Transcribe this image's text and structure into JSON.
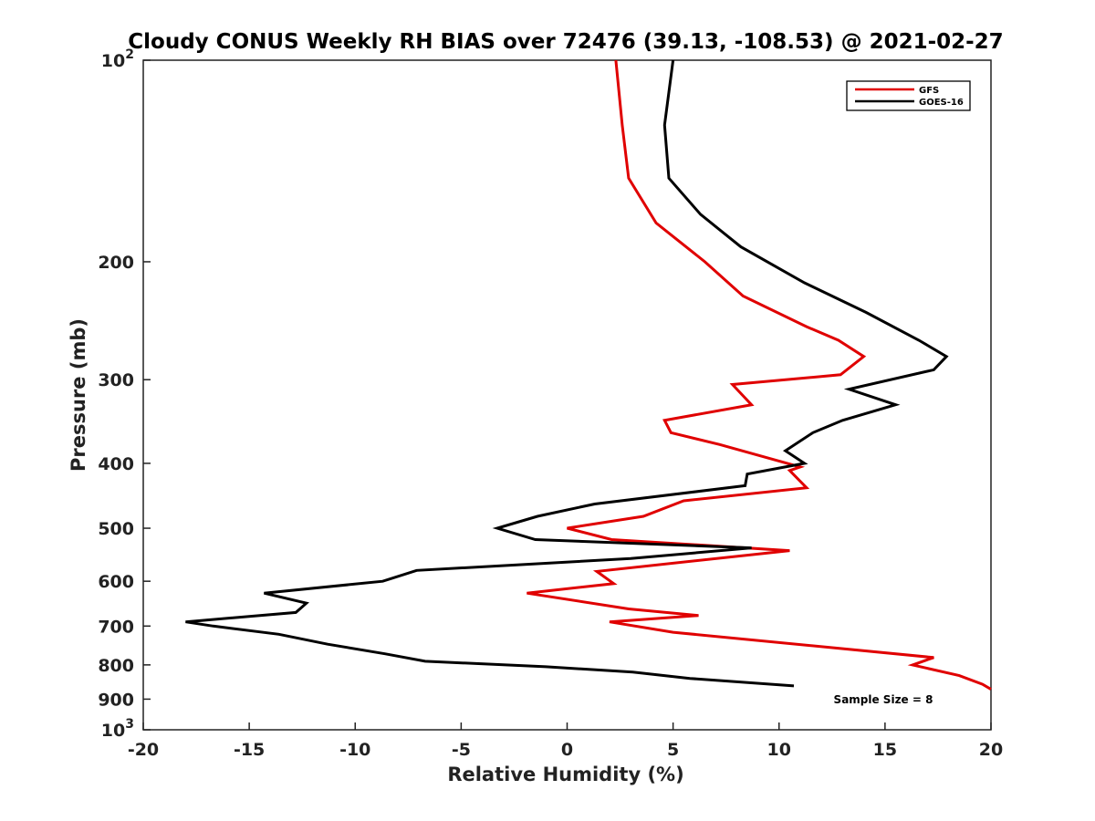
{
  "chart_data": {
    "type": "line",
    "title": "Cloudy CONUS Weekly RH BIAS over 72476 (39.13, -108.53) @ 2021-02-27",
    "xlabel": "Relative Humidity (%)",
    "ylabel": "Pressure (mb)",
    "xlim": [
      -20,
      20
    ],
    "ylim": [
      100,
      1000
    ],
    "y_scale": "log",
    "y_inverted": true,
    "grid": false,
    "legend_position": "top-right",
    "x_ticks": [
      -20,
      -15,
      -10,
      -5,
      0,
      5,
      10,
      15,
      20
    ],
    "x_tick_labels": [
      "-20",
      "-15",
      "-10",
      "-5",
      "0",
      "5",
      "10",
      "15",
      "20"
    ],
    "y_ticks": [
      100,
      200,
      300,
      400,
      500,
      600,
      700,
      800,
      900,
      1000
    ],
    "y_tick_labels": [
      {
        "base": "10",
        "exp": "2"
      },
      {
        "base": "200",
        "exp": ""
      },
      {
        "base": "300",
        "exp": ""
      },
      {
        "base": "400",
        "exp": ""
      },
      {
        "base": "500",
        "exp": ""
      },
      {
        "base": "600",
        "exp": ""
      },
      {
        "base": "700",
        "exp": ""
      },
      {
        "base": "800",
        "exp": ""
      },
      {
        "base": "900",
        "exp": ""
      },
      {
        "base": "10",
        "exp": "3"
      }
    ],
    "annotation": "Sample Size = 8",
    "series": [
      {
        "name": "GFS",
        "color": "#e00000",
        "points": [
          {
            "x": 2.3,
            "y": 100
          },
          {
            "x": 2.6,
            "y": 125
          },
          {
            "x": 2.9,
            "y": 150
          },
          {
            "x": 4.2,
            "y": 175
          },
          {
            "x": 6.5,
            "y": 200
          },
          {
            "x": 8.3,
            "y": 225
          },
          {
            "x": 11.3,
            "y": 250
          },
          {
            "x": 12.8,
            "y": 262
          },
          {
            "x": 14.0,
            "y": 277
          },
          {
            "x": 12.9,
            "y": 295
          },
          {
            "x": 7.8,
            "y": 305
          },
          {
            "x": 8.7,
            "y": 327
          },
          {
            "x": 4.6,
            "y": 345
          },
          {
            "x": 4.9,
            "y": 360
          },
          {
            "x": 7.2,
            "y": 375
          },
          {
            "x": 11.0,
            "y": 405
          },
          {
            "x": 10.5,
            "y": 410
          },
          {
            "x": 11.3,
            "y": 435
          },
          {
            "x": 5.5,
            "y": 455
          },
          {
            "x": 3.6,
            "y": 480
          },
          {
            "x": 0.0,
            "y": 500
          },
          {
            "x": 2.1,
            "y": 520
          },
          {
            "x": 10.5,
            "y": 540
          },
          {
            "x": 1.4,
            "y": 580
          },
          {
            "x": 2.2,
            "y": 605
          },
          {
            "x": -1.9,
            "y": 625
          },
          {
            "x": 2.9,
            "y": 660
          },
          {
            "x": 6.2,
            "y": 675
          },
          {
            "x": 2.0,
            "y": 690
          },
          {
            "x": 5.0,
            "y": 715
          },
          {
            "x": 17.3,
            "y": 780
          },
          {
            "x": 16.3,
            "y": 800
          },
          {
            "x": 18.5,
            "y": 830
          },
          {
            "x": 19.6,
            "y": 855
          },
          {
            "x": 20.0,
            "y": 870
          }
        ]
      },
      {
        "name": "GOES-16",
        "color": "#000000",
        "points": [
          {
            "x": 5.0,
            "y": 100
          },
          {
            "x": 4.6,
            "y": 125
          },
          {
            "x": 4.8,
            "y": 150
          },
          {
            "x": 6.3,
            "y": 170
          },
          {
            "x": 8.2,
            "y": 190
          },
          {
            "x": 11.2,
            "y": 215
          },
          {
            "x": 14.1,
            "y": 238
          },
          {
            "x": 16.6,
            "y": 262
          },
          {
            "x": 17.9,
            "y": 277
          },
          {
            "x": 17.3,
            "y": 290
          },
          {
            "x": 13.3,
            "y": 310
          },
          {
            "x": 15.5,
            "y": 327
          },
          {
            "x": 13.0,
            "y": 345
          },
          {
            "x": 11.6,
            "y": 360
          },
          {
            "x": 10.3,
            "y": 383
          },
          {
            "x": 11.2,
            "y": 400
          },
          {
            "x": 8.5,
            "y": 415
          },
          {
            "x": 8.4,
            "y": 432
          },
          {
            "x": 1.3,
            "y": 460
          },
          {
            "x": -1.4,
            "y": 480
          },
          {
            "x": -3.3,
            "y": 500
          },
          {
            "x": -1.5,
            "y": 520
          },
          {
            "x": 8.7,
            "y": 535
          },
          {
            "x": 3.0,
            "y": 555
          },
          {
            "x": -7.1,
            "y": 578
          },
          {
            "x": -8.7,
            "y": 600
          },
          {
            "x": -14.3,
            "y": 625
          },
          {
            "x": -12.3,
            "y": 647
          },
          {
            "x": -12.8,
            "y": 668
          },
          {
            "x": -18.0,
            "y": 690
          },
          {
            "x": -16.7,
            "y": 700
          },
          {
            "x": -13.6,
            "y": 720
          },
          {
            "x": -11.3,
            "y": 745
          },
          {
            "x": -8.6,
            "y": 770
          },
          {
            "x": -6.7,
            "y": 790
          },
          {
            "x": -1.0,
            "y": 805
          },
          {
            "x": 3.1,
            "y": 820
          },
          {
            "x": 5.8,
            "y": 838
          },
          {
            "x": 10.7,
            "y": 860
          }
        ]
      }
    ]
  }
}
